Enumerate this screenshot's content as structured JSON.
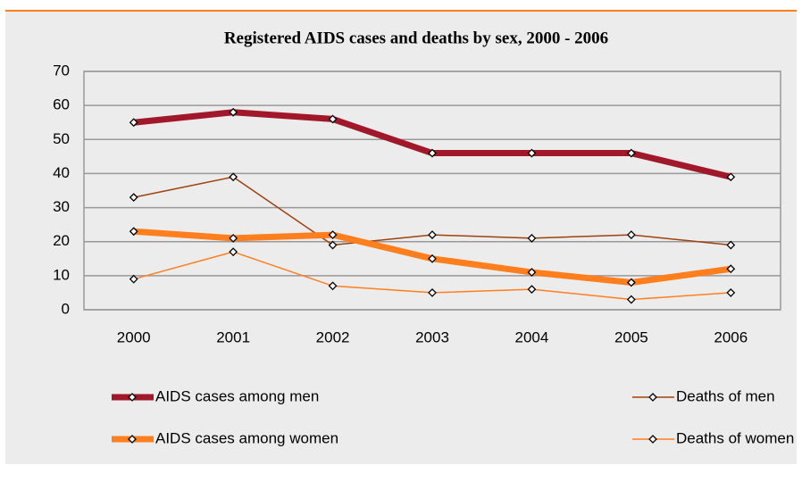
{
  "chart_data": {
    "type": "line",
    "title": "Registered AIDS cases and deaths by sex, 2000 - 2006",
    "categories": [
      "2000",
      "2001",
      "2002",
      "2003",
      "2004",
      "2005",
      "2006"
    ],
    "series": [
      {
        "name": "AIDS cases among men",
        "color": "#a0182a",
        "line_width": 7,
        "values": [
          55,
          58,
          56,
          46,
          46,
          46,
          39
        ]
      },
      {
        "name": "Deaths of men",
        "color": "#a0410d",
        "line_width": 1.5,
        "values": [
          33,
          39,
          19,
          22,
          21,
          22,
          19
        ]
      },
      {
        "name": "AIDS cases among women",
        "color": "#ff7f1e",
        "line_width": 7,
        "values": [
          23,
          21,
          22,
          15,
          11,
          8,
          12
        ]
      },
      {
        "name": "Deaths of women",
        "color": "#ff7f1e",
        "line_width": 1.5,
        "values": [
          9,
          17,
          7,
          5,
          6,
          3,
          5
        ]
      }
    ],
    "ylim": [
      0,
      70
    ],
    "yticks": [
      0,
      10,
      20,
      30,
      40,
      50,
      60,
      70
    ],
    "grid": true,
    "legend": "bottom"
  }
}
